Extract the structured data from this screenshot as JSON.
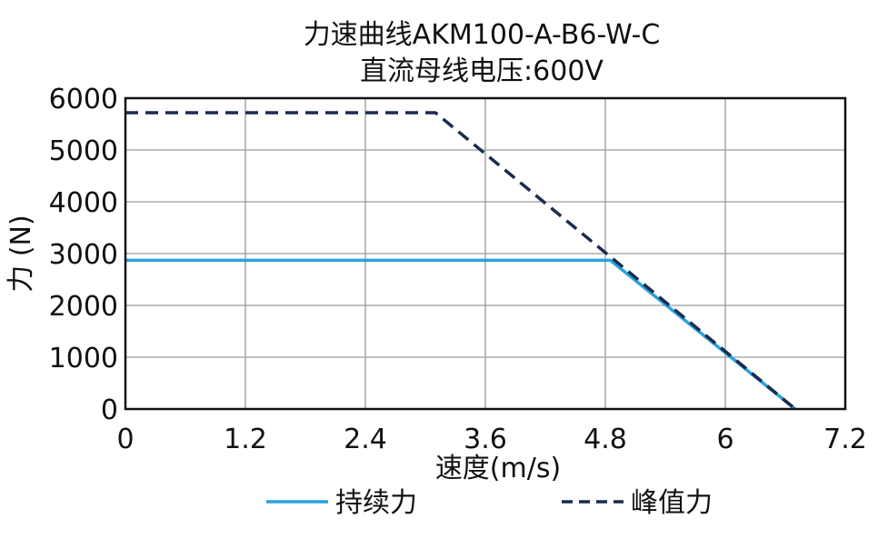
{
  "chart_data": {
    "type": "line",
    "title": "力速曲线AKM100-A-B6-W-C",
    "subtitle": "直流母线电压:600V",
    "xlabel": "速度(m/s)",
    "ylabel": "力 (N)",
    "xlim": [
      0,
      7.2
    ],
    "ylim": [
      0,
      6000
    ],
    "xticks": [
      0,
      1.2,
      2.4,
      3.6,
      4.8,
      6,
      7.2
    ],
    "xtick_labels": [
      "0",
      "1.2",
      "2.4",
      "3.6",
      "4.8",
      "6",
      "7.2"
    ],
    "yticks": [
      0,
      1000,
      2000,
      3000,
      4000,
      5000,
      6000
    ],
    "ytick_labels": [
      "0",
      "1000",
      "2000",
      "3000",
      "4000",
      "5000",
      "6000"
    ],
    "grid": true,
    "legend_position": "bottom",
    "series": [
      {
        "name": "持续力",
        "color": "#29a3dc",
        "style": "solid",
        "points": [
          [
            0,
            2870
          ],
          [
            4.85,
            2870
          ],
          [
            6.7,
            0
          ]
        ]
      },
      {
        "name": "峰值力",
        "color": "#1a2b4f",
        "style": "dashed",
        "points": [
          [
            0,
            5720
          ],
          [
            3.1,
            5720
          ],
          [
            6.7,
            0
          ]
        ]
      }
    ]
  }
}
